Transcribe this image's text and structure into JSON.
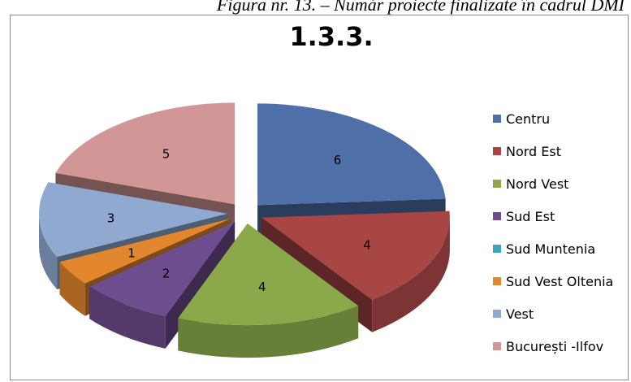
{
  "caption": "Figura nr. 13. – Număr proiecte finalizate în cadrul DMI",
  "chart_data": {
    "type": "pie",
    "title": "1.3.3.",
    "categories": [
      "Centru",
      "Nord Est",
      "Nord Vest",
      "Sud Est",
      "Sud Muntenia",
      "Sud Vest Oltenia",
      "Vest",
      "București -Ilfov"
    ],
    "values": [
      6,
      4,
      4,
      2,
      0,
      1,
      3,
      5
    ],
    "colors": [
      "#4F6FA8",
      "#A84545",
      "#8BA94A",
      "#6E4D8E",
      "#3AA6BE",
      "#E3872F",
      "#8FA9D1",
      "#D39696"
    ],
    "exploded": true,
    "style": "3d",
    "legend_position": "right"
  }
}
